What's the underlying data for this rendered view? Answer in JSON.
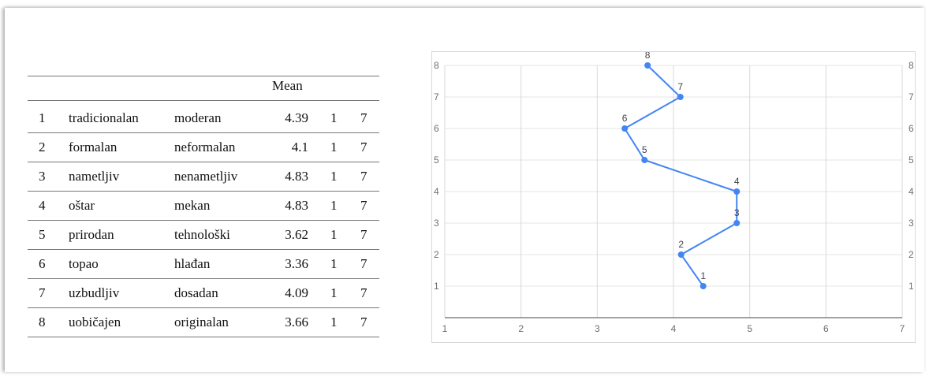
{
  "table": {
    "mean_header": "Mean",
    "rows": [
      {
        "idx": "1",
        "left": "tradicionalan",
        "right": "moderan",
        "mean": "4.39",
        "min": "1",
        "max": "7"
      },
      {
        "idx": "2",
        "left": "formalan",
        "right": "neformalan",
        "mean": "4.1",
        "min": "1",
        "max": "7"
      },
      {
        "idx": "3",
        "left": "nametljiv",
        "right": "nenametljiv",
        "mean": "4.83",
        "min": "1",
        "max": "7"
      },
      {
        "idx": "4",
        "left": "oštar",
        "right": "mekan",
        "mean": "4.83",
        "min": "1",
        "max": "7"
      },
      {
        "idx": "5",
        "left": "prirodan",
        "right": "tehnološki",
        "mean": "3.62",
        "min": "1",
        "max": "7"
      },
      {
        "idx": "6",
        "left": "topao",
        "right": "hlađan",
        "mean": "3.36",
        "min": "1",
        "max": "7"
      },
      {
        "idx": "7",
        "left": "uzbudljiv",
        "right": "dosadan",
        "mean": "4.09",
        "min": "1",
        "max": "7"
      },
      {
        "idx": "8",
        "left": "uobičajen",
        "right": "originalan",
        "mean": "3.66",
        "min": "1",
        "max": "7"
      }
    ]
  },
  "chart_data": {
    "type": "line",
    "title": "",
    "xlabel": "",
    "ylabel": "",
    "xlim": [
      1,
      7
    ],
    "ylim": [
      0,
      8
    ],
    "x_ticks": [
      "1",
      "2",
      "3",
      "4",
      "5",
      "6",
      "7"
    ],
    "y_ticks": [
      "1",
      "2",
      "3",
      "4",
      "5",
      "6",
      "7",
      "8"
    ],
    "grid": true,
    "series": [
      {
        "color": "#4285f4",
        "points": [
          {
            "x": 4.39,
            "y": 1,
            "label": "1"
          },
          {
            "x": 4.1,
            "y": 2,
            "label": "2"
          },
          {
            "x": 4.83,
            "y": 3,
            "label": "3"
          },
          {
            "x": 4.83,
            "y": 4,
            "label": "4"
          },
          {
            "x": 3.62,
            "y": 5,
            "label": "5"
          },
          {
            "x": 3.36,
            "y": 6,
            "label": "6"
          },
          {
            "x": 4.09,
            "y": 7,
            "label": "7"
          },
          {
            "x": 3.66,
            "y": 8,
            "label": "8"
          }
        ]
      }
    ]
  }
}
